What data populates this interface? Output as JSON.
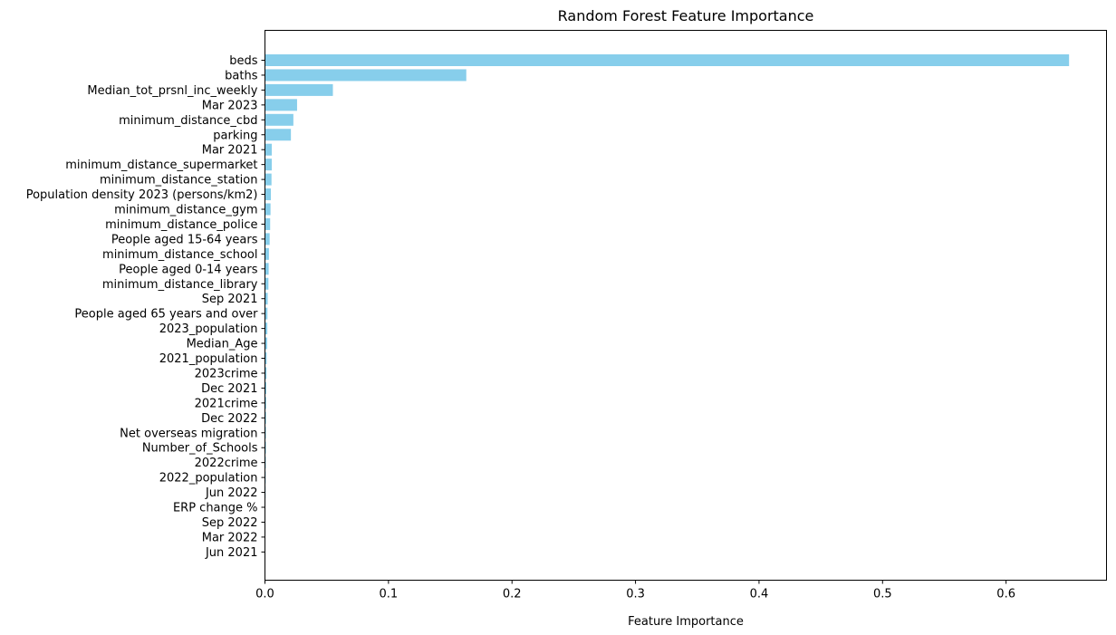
{
  "chart_data": {
    "type": "bar",
    "orientation": "horizontal",
    "title": "Random Forest Feature Importance",
    "xlabel": "Feature Importance",
    "ylabel": "",
    "xlim": [
      0,
      0.6813
    ],
    "xticks": [
      0.0,
      0.1,
      0.2,
      0.3,
      0.4,
      0.5,
      0.6
    ],
    "xtick_labels": [
      "0.0",
      "0.1",
      "0.2",
      "0.3",
      "0.4",
      "0.5",
      "0.6"
    ],
    "bar_color": "#87CEEB",
    "grid": false,
    "categories": [
      "beds",
      "baths",
      "Median_tot_prsnl_inc_weekly",
      "Mar 2023",
      "minimum_distance_cbd",
      "parking",
      "Mar 2021",
      "minimum_distance_supermarket",
      "minimum_distance_station",
      "Population density 2023 (persons/km2)",
      "minimum_distance_gym",
      "minimum_distance_police",
      "People aged 15-64 years",
      "minimum_distance_school",
      "People aged 0-14 years",
      "minimum_distance_library",
      "Sep 2021",
      "People aged 65 years and over",
      "2023_population",
      "Median_Age",
      "2021_population",
      "2023crime",
      "Dec 2021",
      "2021crime",
      "Dec 2022",
      "Net overseas migration",
      "Number_of_Schools",
      "2022crime",
      "2022_population",
      "Jun 2022",
      "ERP change %",
      "Sep 2022",
      "Mar 2022",
      "Jun 2021"
    ],
    "values": [
      0.651,
      0.163,
      0.055,
      0.026,
      0.023,
      0.021,
      0.0055,
      0.0055,
      0.0053,
      0.0048,
      0.0045,
      0.0042,
      0.0038,
      0.0032,
      0.003,
      0.0028,
      0.0022,
      0.002,
      0.0019,
      0.0018,
      0.0014,
      0.0013,
      0.0011,
      0.001,
      0.0009,
      0.0008,
      0.0008,
      0.0007,
      0.0006,
      0.0005,
      0.0003,
      0.0002,
      0.0002,
      0.0001
    ]
  }
}
